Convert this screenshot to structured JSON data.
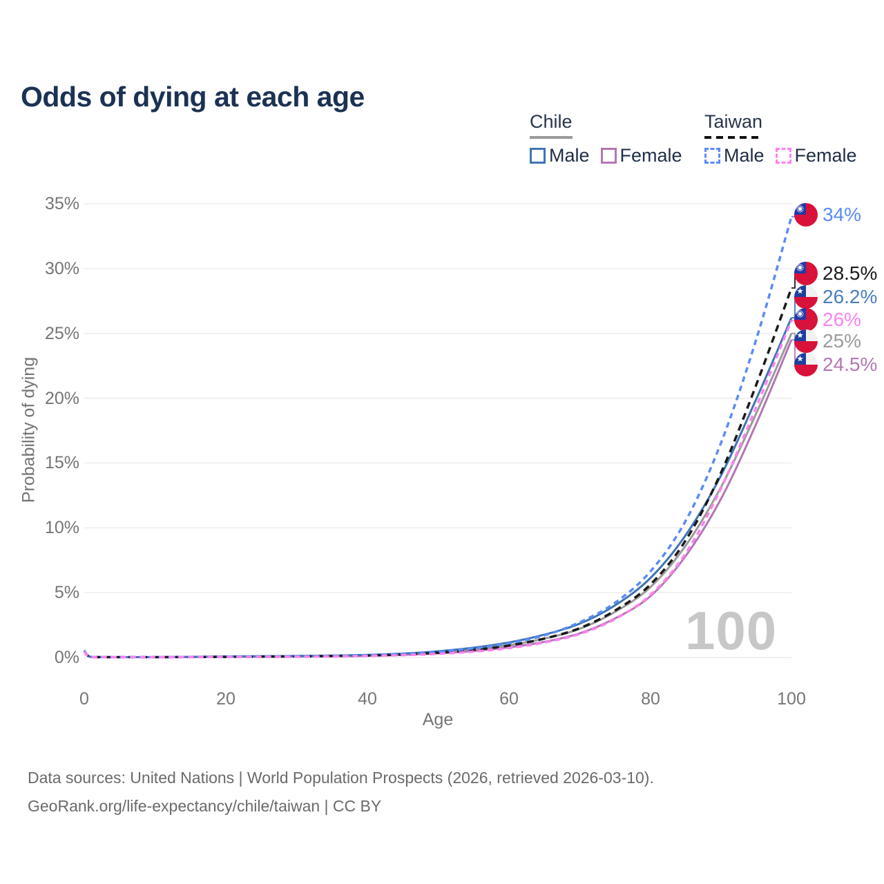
{
  "title": "Odds of dying at each age",
  "legend": {
    "groups": [
      {
        "label": "Chile",
        "line": "solid",
        "line_color": "#9a9a9a",
        "items": [
          {
            "label": "Male",
            "color": "#3f74b3"
          },
          {
            "label": "Female",
            "color": "#b277b4"
          }
        ]
      },
      {
        "label": "Taiwan",
        "line": "dashed",
        "line_color": "#1a1a1a",
        "items": [
          {
            "label": "Male",
            "color": "#5a8cf5"
          },
          {
            "label": "Female",
            "color": "#fb82f0"
          }
        ]
      }
    ]
  },
  "watermark": "100",
  "chart_data": {
    "type": "line",
    "title": "Odds of dying at each age",
    "xlabel": "Age",
    "ylabel": "Probability of dying",
    "xlim": [
      0,
      100
    ],
    "ylim": [
      0,
      35
    ],
    "grid": "horizontal",
    "xticks": [
      "0",
      "20",
      "40",
      "60",
      "80",
      "100"
    ],
    "yticks": [
      "0%",
      "5%",
      "10%",
      "15%",
      "20%",
      "25%",
      "30%",
      "35%"
    ],
    "x_ages": [
      0,
      1,
      5,
      10,
      15,
      20,
      25,
      30,
      35,
      40,
      45,
      50,
      55,
      60,
      65,
      70,
      75,
      80,
      85,
      90,
      95,
      100
    ],
    "series": [
      {
        "name": "Taiwan Male",
        "country": "taiwan",
        "sex": "male",
        "line": "dashed",
        "color": "#5a8cf5",
        "dash": "8 6",
        "width": 3.5,
        "end_label": "34%",
        "label_color": "#5a8cf5",
        "values": [
          0.55,
          0.04,
          0.02,
          0.02,
          0.04,
          0.06,
          0.08,
          0.1,
          0.13,
          0.18,
          0.28,
          0.45,
          0.7,
          1.1,
          1.7,
          2.7,
          4.2,
          6.6,
          10.5,
          16.5,
          24.5,
          34.0
        ]
      },
      {
        "name": "Taiwan",
        "country": "taiwan",
        "sex": "both",
        "line": "dashed",
        "color": "#1a1a1a",
        "dash": "10 7",
        "width": 3.5,
        "end_label": "28.5%",
        "label_color": "#1a1a1a",
        "values": [
          0.5,
          0.035,
          0.02,
          0.02,
          0.035,
          0.05,
          0.065,
          0.085,
          0.11,
          0.15,
          0.23,
          0.37,
          0.58,
          0.92,
          1.45,
          2.25,
          3.6,
          5.6,
          9.0,
          14.2,
          21.0,
          28.5
        ]
      },
      {
        "name": "Chile Male",
        "country": "chile",
        "sex": "male",
        "line": "solid",
        "color": "#3f74b3",
        "dash": null,
        "width": 3,
        "end_label": "26.2%",
        "label_color": "#4a7dbe",
        "values": [
          0.55,
          0.04,
          0.02,
          0.025,
          0.05,
          0.08,
          0.1,
          0.12,
          0.15,
          0.2,
          0.3,
          0.48,
          0.75,
          1.15,
          1.75,
          2.6,
          4.0,
          6.1,
          9.4,
          14.0,
          19.9,
          26.2
        ]
      },
      {
        "name": "Taiwan Female",
        "country": "taiwan",
        "sex": "female",
        "line": "dashed",
        "color": "#fb82f0",
        "dash": "8 6",
        "width": 3.5,
        "end_label": "26%",
        "label_color": "#fb82f0",
        "values": [
          0.45,
          0.03,
          0.015,
          0.015,
          0.025,
          0.035,
          0.045,
          0.06,
          0.08,
          0.12,
          0.18,
          0.28,
          0.45,
          0.72,
          1.15,
          1.8,
          2.95,
          4.8,
          8.0,
          13.0,
          19.3,
          26.0
        ]
      },
      {
        "name": "Chile",
        "country": "chile",
        "sex": "both",
        "line": "solid",
        "color": "#9a9a9a",
        "dash": null,
        "width": 3,
        "end_label": "25%",
        "label_color": "#9b9b9b",
        "values": [
          0.5,
          0.035,
          0.02,
          0.02,
          0.04,
          0.06,
          0.075,
          0.095,
          0.12,
          0.16,
          0.25,
          0.4,
          0.62,
          0.95,
          1.45,
          2.2,
          3.5,
          5.4,
          8.6,
          13.1,
          18.8,
          25.0
        ]
      },
      {
        "name": "Chile Female",
        "country": "chile",
        "sex": "female",
        "line": "solid",
        "color": "#b277b4",
        "dash": null,
        "width": 3,
        "end_label": "24.5%",
        "label_color": "#b277b4",
        "values": [
          0.45,
          0.03,
          0.015,
          0.015,
          0.03,
          0.045,
          0.055,
          0.07,
          0.09,
          0.13,
          0.2,
          0.32,
          0.5,
          0.78,
          1.2,
          1.85,
          3.0,
          4.7,
          7.8,
          12.2,
          18.0,
          24.5
        ]
      }
    ]
  },
  "footer": {
    "line1": "Data sources: United Nations | World Population Prospects (2026, retrieved 2026-03-10).",
    "line2": "GeoRank.org/life-expectancy/chile/taiwan | CC BY"
  }
}
